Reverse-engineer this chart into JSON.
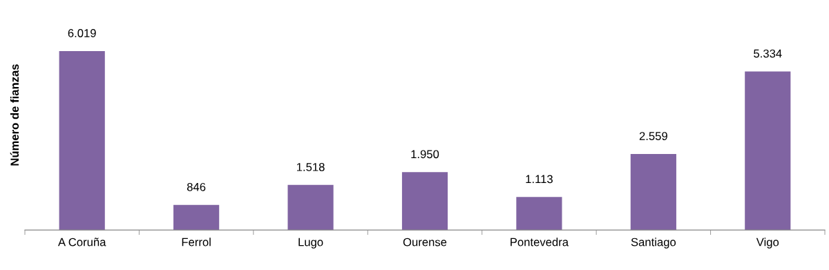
{
  "chart_data": {
    "type": "bar",
    "ylabel": "Número de fianzas",
    "categories": [
      "A Coruña",
      "Ferrol",
      "Lugo",
      "Ourense",
      "Pontevedra",
      "Santiago",
      "Vigo"
    ],
    "values": [
      6019,
      846,
      1518,
      1950,
      1113,
      2559,
      5334
    ],
    "value_labels": [
      "6.019",
      "846",
      "1.518",
      "1.950",
      "1.113",
      "2.559",
      "5.334"
    ],
    "color": "#8064a2",
    "grid": false,
    "legend": false
  }
}
